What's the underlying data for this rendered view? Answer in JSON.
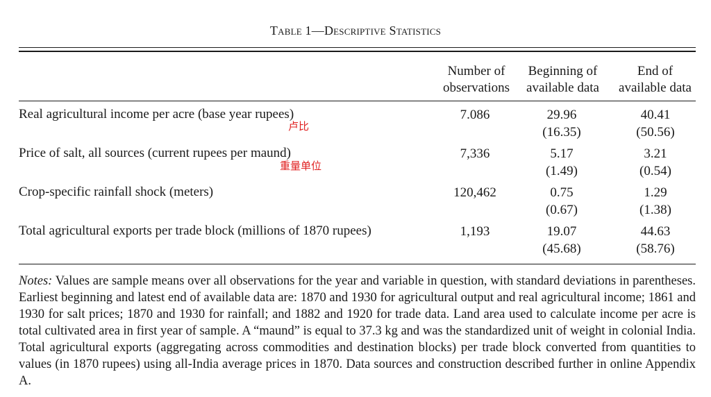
{
  "table": {
    "title": "Table 1—Descriptive Statistics",
    "columns": [
      {
        "line1": "Number of",
        "line2": "observations"
      },
      {
        "line1": "Beginning of",
        "line2": "available data"
      },
      {
        "line1": "End of",
        "line2": "available data"
      }
    ],
    "rows": [
      {
        "label": "Real agricultural income per acre (base year rupees)",
        "n": "7.086",
        "begin_mean": "29.96",
        "begin_sd": "(16.35)",
        "end_mean": "40.41",
        "end_sd": "(50.56)"
      },
      {
        "label": "Price of salt, all sources (current rupees per maund)",
        "n": "7,336",
        "begin_mean": "5.17",
        "begin_sd": "(1.49)",
        "end_mean": "3.21",
        "end_sd": "(0.54)"
      },
      {
        "label": "Crop-specific rainfall shock (meters)",
        "n": "120,462",
        "begin_mean": "0.75",
        "begin_sd": "(0.67)",
        "end_mean": "1.29",
        "end_sd": "(1.38)"
      },
      {
        "label": "Total agricultural exports per trade block (millions of 1870 rupees)",
        "n": "1,193",
        "begin_mean": "19.07",
        "begin_sd": "(45.68)",
        "end_mean": "44.63",
        "end_sd": "(58.76)"
      }
    ]
  },
  "annotations": {
    "rupees": "卢比",
    "maund": "重量单位"
  },
  "notes": {
    "label": "Notes:",
    "text": "Values are sample means over all observations for the year and variable in question, with standard deviations in parentheses. Earliest beginning and latest end of available data are: 1870 and 1930 for agricultural output and real agricultural income; 1861 and 1930 for salt prices; 1870 and 1930 for rainfall; and 1882 and 1920 for trade data. Land area used to calculate income per acre is total cultivated area in first year of sample. A “maund” is equal to 37.3 kg and was the standardized unit of weight in colonial India. Total agricultural exports (aggregating across commodities and destination blocks) per trade block converted from quantities to values (in 1870 rupees) using all-India average prices in 1870. Data sources and construction described further in online Appendix A."
  }
}
